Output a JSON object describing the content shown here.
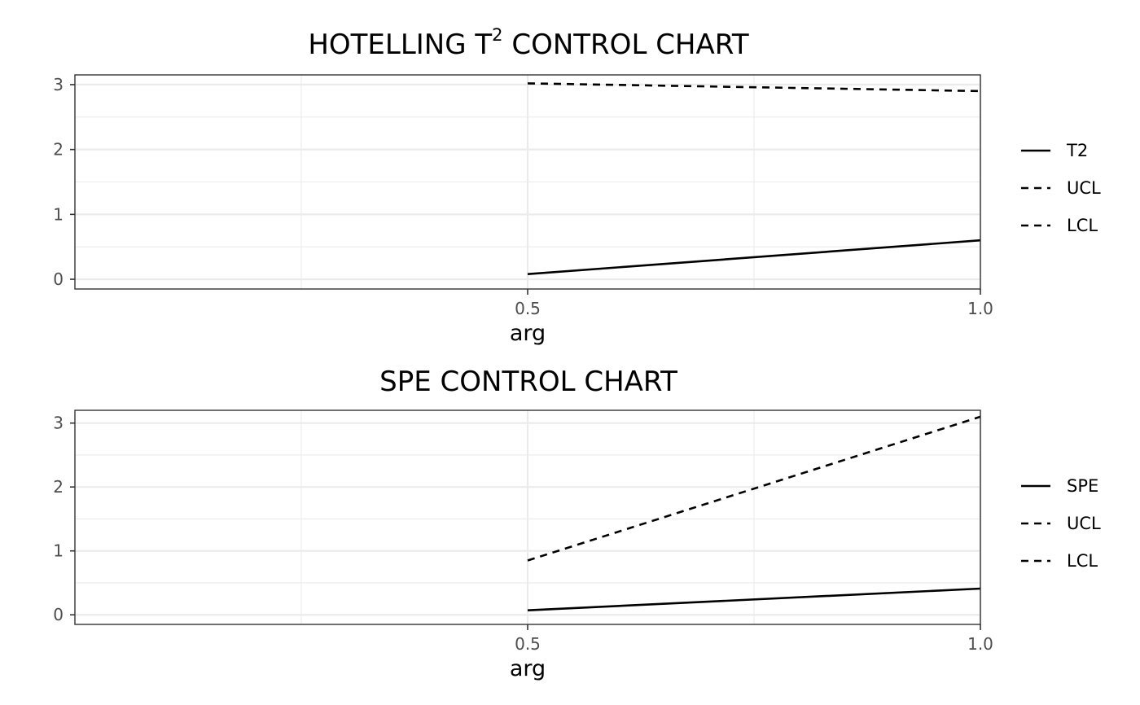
{
  "chart_data": [
    {
      "type": "line",
      "title": "HOTELLING T",
      "title_superscript": "2",
      "title_suffix": " CONTROL CHART",
      "xlabel": "arg",
      "ylabel": "",
      "xlim": [
        0.0,
        1.0
      ],
      "ylim": [
        -0.15,
        3.15
      ],
      "x_ticks": [
        0.5,
        1.0
      ],
      "x_tick_labels": [
        "0.5",
        "1.0"
      ],
      "y_ticks": [
        0,
        1,
        2,
        3
      ],
      "y_tick_labels": [
        "0",
        "1",
        "2",
        "3"
      ],
      "grid": true,
      "legend_position": "right",
      "series": [
        {
          "name": "T2",
          "style": "solid",
          "x": [
            0.5,
            1.0
          ],
          "values": [
            0.08,
            0.6
          ]
        },
        {
          "name": "UCL",
          "style": "dashed",
          "x": [
            0.5,
            1.0
          ],
          "values": [
            3.02,
            2.9
          ]
        },
        {
          "name": "LCL",
          "style": "dashed",
          "x": [],
          "values": []
        }
      ]
    },
    {
      "type": "line",
      "title": "SPE CONTROL CHART",
      "xlabel": "arg",
      "ylabel": "",
      "xlim": [
        0.0,
        1.0
      ],
      "ylim": [
        -0.15,
        3.2
      ],
      "x_ticks": [
        0.5,
        1.0
      ],
      "x_tick_labels": [
        "0.5",
        "1.0"
      ],
      "y_ticks": [
        0,
        1,
        2,
        3
      ],
      "y_tick_labels": [
        "0",
        "1",
        "2",
        "3"
      ],
      "grid": true,
      "legend_position": "right",
      "series": [
        {
          "name": "SPE",
          "style": "solid",
          "x": [
            0.5,
            1.0
          ],
          "values": [
            0.07,
            0.41
          ]
        },
        {
          "name": "UCL",
          "style": "dashed",
          "x": [
            0.5,
            1.0
          ],
          "values": [
            0.85,
            3.1
          ]
        },
        {
          "name": "LCL",
          "style": "dashed",
          "x": [],
          "values": []
        }
      ]
    }
  ],
  "colors": {
    "line": "#000000",
    "grid": "#ebebeb",
    "border": "#333333",
    "tick_text": "#4d4d4d"
  }
}
